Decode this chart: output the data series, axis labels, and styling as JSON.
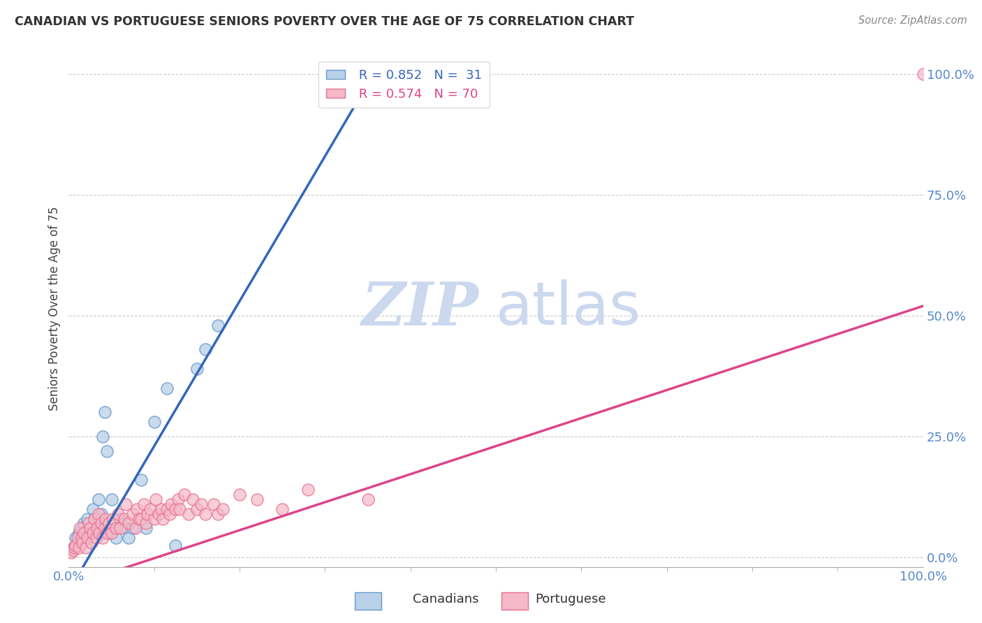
{
  "title": "CANADIAN VS PORTUGUESE SENIORS POVERTY OVER THE AGE OF 75 CORRELATION CHART",
  "source": "Source: ZipAtlas.com",
  "ylabel": "Seniors Poverty Over the Age of 75",
  "xlim": [
    0,
    1
  ],
  "ylim": [
    -0.02,
    1.05
  ],
  "ytick_labels": [
    "0.0%",
    "25.0%",
    "50.0%",
    "75.0%",
    "100.0%"
  ],
  "ytick_positions": [
    0.0,
    0.25,
    0.5,
    0.75,
    1.0
  ],
  "canadian_R": "0.852",
  "canadian_N": "31",
  "portuguese_R": "0.574",
  "portuguese_N": "70",
  "canadian_color": "#b8d0e8",
  "portuguese_color": "#f5b8c8",
  "canadian_edge_color": "#6699cc",
  "portuguese_edge_color": "#e87090",
  "canadian_line_color": "#3366bb",
  "portuguese_line_color": "#dd4488",
  "background_color": "#ffffff",
  "watermark_zip": "ZIP",
  "watermark_atlas": "atlas",
  "watermark_color": "#ccd8ee",
  "canadian_points": [
    [
      0.005,
      0.02
    ],
    [
      0.008,
      0.04
    ],
    [
      0.01,
      0.03
    ],
    [
      0.012,
      0.05
    ],
    [
      0.015,
      0.06
    ],
    [
      0.018,
      0.07
    ],
    [
      0.02,
      0.04
    ],
    [
      0.022,
      0.08
    ],
    [
      0.025,
      0.05
    ],
    [
      0.028,
      0.1
    ],
    [
      0.03,
      0.08
    ],
    [
      0.035,
      0.12
    ],
    [
      0.038,
      0.09
    ],
    [
      0.04,
      0.25
    ],
    [
      0.042,
      0.3
    ],
    [
      0.045,
      0.22
    ],
    [
      0.048,
      0.05
    ],
    [
      0.05,
      0.12
    ],
    [
      0.055,
      0.04
    ],
    [
      0.06,
      0.08
    ],
    [
      0.065,
      0.06
    ],
    [
      0.07,
      0.04
    ],
    [
      0.075,
      0.06
    ],
    [
      0.085,
      0.16
    ],
    [
      0.09,
      0.06
    ],
    [
      0.1,
      0.28
    ],
    [
      0.115,
      0.35
    ],
    [
      0.125,
      0.025
    ],
    [
      0.15,
      0.39
    ],
    [
      0.16,
      0.43
    ],
    [
      0.175,
      0.48
    ]
  ],
  "portuguese_points": [
    [
      0.003,
      0.01
    ],
    [
      0.005,
      0.015
    ],
    [
      0.006,
      0.02
    ],
    [
      0.008,
      0.025
    ],
    [
      0.01,
      0.04
    ],
    [
      0.012,
      0.02
    ],
    [
      0.013,
      0.06
    ],
    [
      0.015,
      0.04
    ],
    [
      0.016,
      0.03
    ],
    [
      0.018,
      0.05
    ],
    [
      0.02,
      0.02
    ],
    [
      0.022,
      0.04
    ],
    [
      0.023,
      0.07
    ],
    [
      0.025,
      0.06
    ],
    [
      0.027,
      0.03
    ],
    [
      0.028,
      0.05
    ],
    [
      0.03,
      0.08
    ],
    [
      0.032,
      0.04
    ],
    [
      0.033,
      0.06
    ],
    [
      0.035,
      0.09
    ],
    [
      0.036,
      0.05
    ],
    [
      0.038,
      0.07
    ],
    [
      0.04,
      0.04
    ],
    [
      0.042,
      0.06
    ],
    [
      0.043,
      0.08
    ],
    [
      0.045,
      0.05
    ],
    [
      0.047,
      0.07
    ],
    [
      0.05,
      0.05
    ],
    [
      0.052,
      0.08
    ],
    [
      0.055,
      0.06
    ],
    [
      0.058,
      0.09
    ],
    [
      0.06,
      0.06
    ],
    [
      0.065,
      0.08
    ],
    [
      0.067,
      0.11
    ],
    [
      0.07,
      0.07
    ],
    [
      0.075,
      0.09
    ],
    [
      0.078,
      0.06
    ],
    [
      0.08,
      0.1
    ],
    [
      0.082,
      0.08
    ],
    [
      0.085,
      0.08
    ],
    [
      0.088,
      0.11
    ],
    [
      0.09,
      0.07
    ],
    [
      0.092,
      0.09
    ],
    [
      0.095,
      0.1
    ],
    [
      0.1,
      0.08
    ],
    [
      0.102,
      0.12
    ],
    [
      0.105,
      0.09
    ],
    [
      0.108,
      0.1
    ],
    [
      0.11,
      0.08
    ],
    [
      0.115,
      0.1
    ],
    [
      0.118,
      0.09
    ],
    [
      0.12,
      0.11
    ],
    [
      0.125,
      0.1
    ],
    [
      0.128,
      0.12
    ],
    [
      0.13,
      0.1
    ],
    [
      0.135,
      0.13
    ],
    [
      0.14,
      0.09
    ],
    [
      0.145,
      0.12
    ],
    [
      0.15,
      0.1
    ],
    [
      0.155,
      0.11
    ],
    [
      0.16,
      0.09
    ],
    [
      0.17,
      0.11
    ],
    [
      0.175,
      0.09
    ],
    [
      0.18,
      0.1
    ],
    [
      0.2,
      0.13
    ],
    [
      0.22,
      0.12
    ],
    [
      0.25,
      0.1
    ],
    [
      0.28,
      0.14
    ],
    [
      0.35,
      0.12
    ],
    [
      1.0,
      1.0
    ]
  ]
}
